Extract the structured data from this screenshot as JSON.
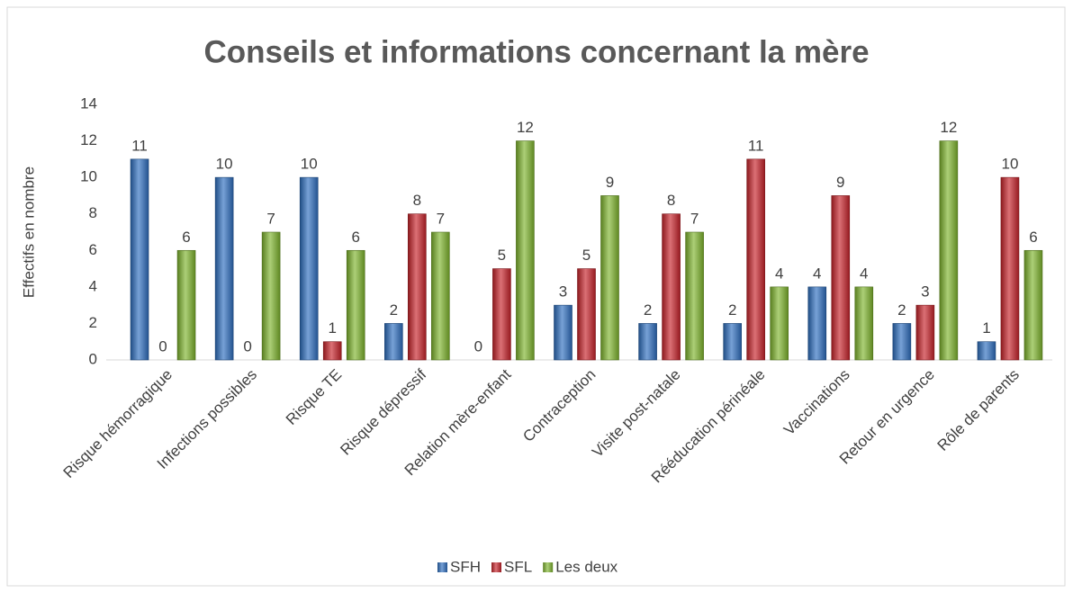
{
  "chart_data": {
    "type": "bar",
    "title": "Conseils et informations concernant la mère",
    "y_label": "Effectifs en nombre",
    "categories": [
      "Risque hémorragique",
      "Infections possibles",
      "Risque TE",
      "Risque dépressif",
      "Relation mère-enfant",
      "Contraception",
      "Visite post-natale",
      "Rééducation périnéale",
      "Vaccinations",
      "Retour en urgence",
      "Rôle de parents"
    ],
    "series": [
      {
        "name": "SFH",
        "color": "#2e6fc0",
        "values": [
          11,
          10,
          10,
          2,
          0,
          3,
          2,
          2,
          4,
          2,
          1
        ]
      },
      {
        "name": "SFL",
        "color": "#c8232a",
        "values": [
          0,
          0,
          1,
          8,
          5,
          5,
          8,
          11,
          9,
          3,
          10
        ]
      },
      {
        "name": "Les deux",
        "color": "#7fb52d",
        "values": [
          6,
          7,
          6,
          7,
          12,
          9,
          7,
          4,
          4,
          12,
          6
        ]
      }
    ],
    "ylim": [
      0,
      14
    ],
    "yticks": [
      0,
      2,
      4,
      6,
      8,
      10,
      12,
      14
    ],
    "grid": false,
    "legend": "bottom"
  }
}
